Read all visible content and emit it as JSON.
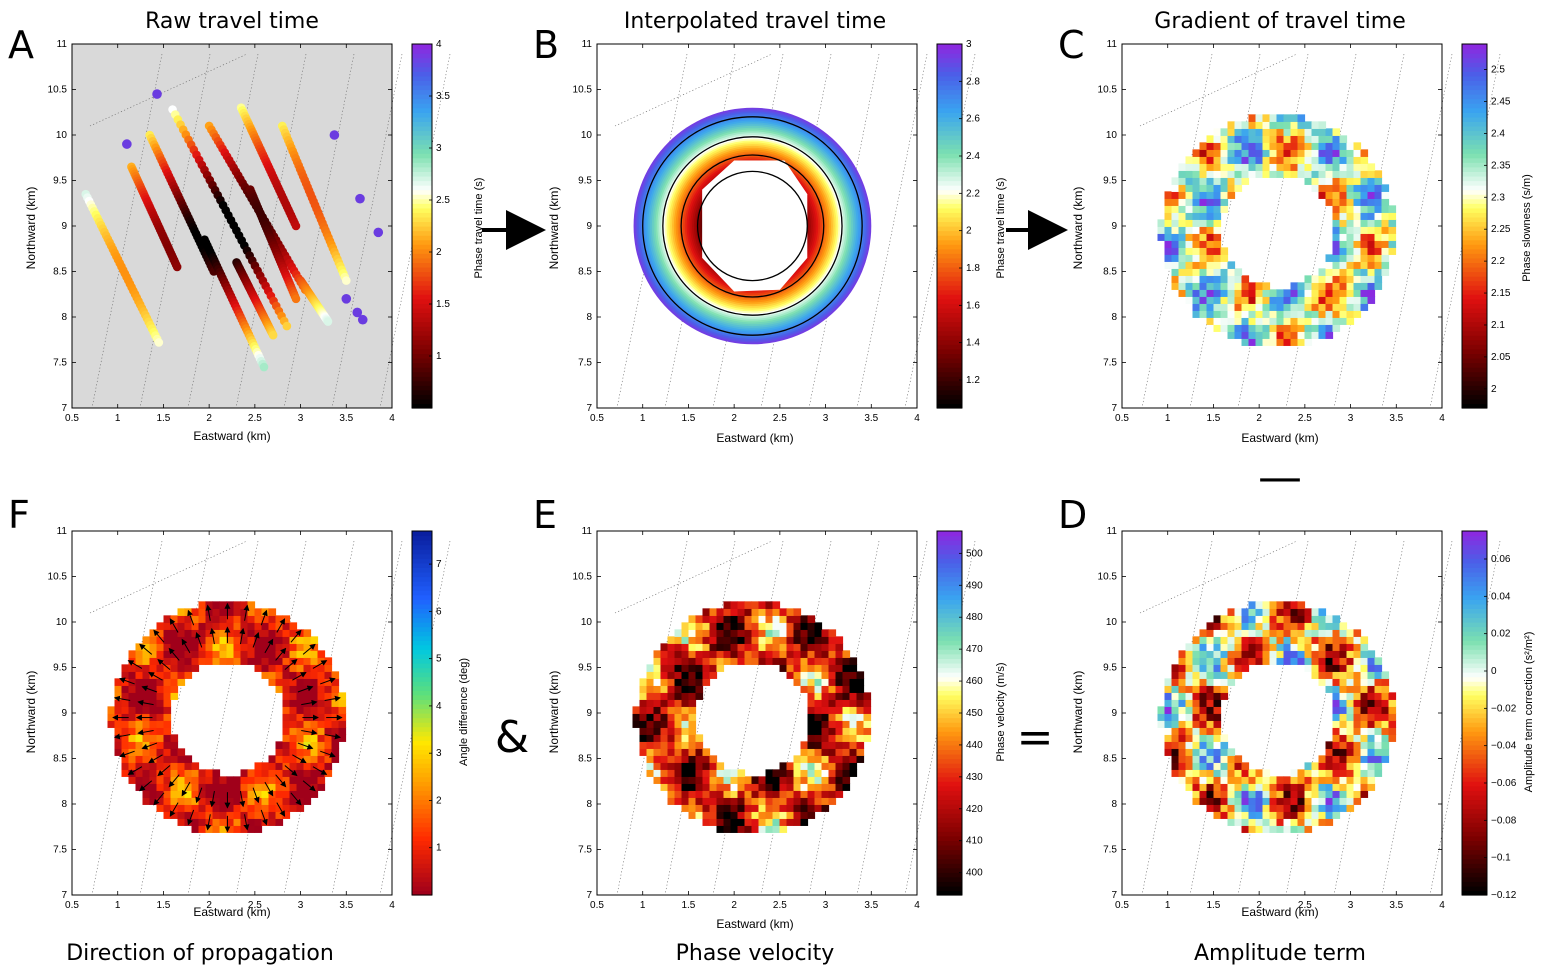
{
  "symbols": {
    "and": "&",
    "equals": "=",
    "minus": "—"
  },
  "chart_data": [
    {
      "id": "A",
      "type": "scatter",
      "title": "Raw travel time",
      "xlabel": "Eastward (km)",
      "ylabel": "Northward (km)",
      "xlim": [
        0.5,
        4
      ],
      "ylim": [
        7,
        11
      ],
      "xticks": [
        0.5,
        1,
        1.5,
        2,
        2.5,
        3,
        3.5,
        4
      ],
      "yticks": [
        7,
        7.5,
        8,
        8.5,
        9,
        9.5,
        10,
        10.5,
        11
      ],
      "background": "#d9d9d9",
      "colorbar": {
        "label": "Phase travel time (s)",
        "range": [
          0.5,
          4
        ],
        "ticks": [
          1,
          1.5,
          2,
          2.5,
          3,
          3.5,
          4
        ],
        "colormap": "travel"
      },
      "lines": [
        {
          "x0": 0.65,
          "y0": 9.35,
          "x1": 1.45,
          "y1": 7.72
        },
        {
          "x0": 1.15,
          "y0": 9.65,
          "x1": 1.65,
          "y1": 8.55
        },
        {
          "x0": 1.35,
          "y0": 10.0,
          "x1": 2.05,
          "y1": 8.5
        },
        {
          "x0": 1.6,
          "y0": 10.28,
          "x1": 2.85,
          "y1": 7.9
        },
        {
          "x0": 2.0,
          "y0": 10.1,
          "x1": 3.05,
          "y1": 8.3
        },
        {
          "x0": 1.95,
          "y0": 8.85,
          "x1": 2.6,
          "y1": 7.45
        },
        {
          "x0": 2.35,
          "y0": 10.3,
          "x1": 2.95,
          "y1": 9.0
        },
        {
          "x0": 2.3,
          "y0": 8.6,
          "x1": 2.7,
          "y1": 7.8
        },
        {
          "x0": 2.8,
          "y0": 10.1,
          "x1": 3.5,
          "y1": 8.4
        },
        {
          "x0": 2.45,
          "y0": 9.4,
          "x1": 2.95,
          "y1": 8.2
        },
        {
          "x0": 3.0,
          "y0": 8.4,
          "x1": 3.3,
          "y1": 7.95
        }
      ],
      "points": [
        [
          1.43,
          10.45
        ],
        [
          3.37,
          10.0
        ],
        [
          1.1,
          9.9
        ],
        [
          3.65,
          9.3
        ],
        [
          3.85,
          8.93
        ],
        [
          3.5,
          8.2
        ],
        [
          3.62,
          8.05
        ],
        [
          3.68,
          7.97
        ]
      ]
    },
    {
      "id": "B",
      "type": "heatmap",
      "title": "Interpolated travel time",
      "xlabel": "Eastward (km)",
      "ylabel": "Northward (km)",
      "xlim": [
        0.5,
        4
      ],
      "ylim": [
        7,
        11
      ],
      "xticks": [
        0.5,
        1,
        1.5,
        2,
        2.5,
        3,
        3.5,
        4
      ],
      "yticks": [
        7,
        7.5,
        8,
        8.5,
        9,
        9.5,
        10,
        10.5,
        11
      ],
      "center": [
        2.2,
        9.0
      ],
      "colorbar": {
        "label": "Phase travel time (s)",
        "range": [
          1.05,
          3.0
        ],
        "ticks": [
          1.2,
          1.4,
          1.6,
          1.8,
          2,
          2.2,
          2.4,
          2.6,
          2.8,
          3
        ],
        "colormap": "travel"
      },
      "contour_radii_km": [
        0.6,
        0.78,
        0.98,
        1.2
      ]
    },
    {
      "id": "C",
      "type": "heatmap",
      "title": "Gradient of travel time",
      "xlabel": "Eastward (km)",
      "ylabel": "Northward (km)",
      "xlim": [
        0.5,
        4
      ],
      "ylim": [
        7,
        11
      ],
      "xticks": [
        0.5,
        1,
        1.5,
        2,
        2.5,
        3,
        3.5,
        4
      ],
      "yticks": [
        7,
        7.5,
        8,
        8.5,
        9,
        9.5,
        10,
        10.5,
        11
      ],
      "colorbar": {
        "label": "Phase slowness (s/m)",
        "range": [
          1.97,
          2.54
        ],
        "ticks": [
          2,
          2.05,
          2.1,
          2.15,
          2.2,
          2.25,
          2.3,
          2.35,
          2.4,
          2.45,
          2.5
        ],
        "colormap": "travel"
      }
    },
    {
      "id": "D",
      "type": "heatmap",
      "title": "Amplitude term",
      "xlabel": "Eastward (km)",
      "ylabel": "Northward (km)",
      "xlim": [
        0.5,
        4
      ],
      "ylim": [
        7,
        11
      ],
      "xticks": [
        0.5,
        1,
        1.5,
        2,
        2.5,
        3,
        3.5,
        4
      ],
      "yticks": [
        7,
        7.5,
        8,
        8.5,
        9,
        9.5,
        10,
        10.5,
        11
      ],
      "colorbar": {
        "label": "Amplitude term correction (s²/m²)",
        "range": [
          -0.12,
          0.075
        ],
        "ticks": [
          "−0.12",
          "−0.1",
          "−0.08",
          "−0.06",
          "−0.04",
          "−0.02",
          "0",
          "0.02",
          "0.04",
          "0.06"
        ],
        "tick_values": [
          -0.12,
          -0.1,
          -0.08,
          -0.06,
          -0.04,
          -0.02,
          0,
          0.02,
          0.04,
          0.06
        ],
        "colormap": "travel"
      }
    },
    {
      "id": "E",
      "type": "heatmap",
      "title": "Phase velocity",
      "xlabel": "Eastward (km)",
      "ylabel": "Northward (km)",
      "xlim": [
        0.5,
        4
      ],
      "ylim": [
        7,
        11
      ],
      "xticks": [
        0.5,
        1,
        1.5,
        2,
        2.5,
        3,
        3.5,
        4
      ],
      "yticks": [
        7,
        7.5,
        8,
        8.5,
        9,
        9.5,
        10,
        10.5,
        11
      ],
      "colorbar": {
        "label": "Phase velocity (m/s)",
        "range": [
          393,
          507
        ],
        "ticks": [
          400,
          410,
          420,
          430,
          440,
          450,
          460,
          470,
          480,
          490,
          500
        ],
        "colormap": "travel"
      }
    },
    {
      "id": "F",
      "type": "heatmap",
      "title": "Direction of propagation",
      "xlabel": "Eastward (km)",
      "ylabel": "Northward (km)",
      "xlim": [
        0.5,
        4
      ],
      "ylim": [
        7,
        11
      ],
      "xticks": [
        0.5,
        1,
        1.5,
        2,
        2.5,
        3,
        3.5,
        4
      ],
      "yticks": [
        7,
        7.5,
        8,
        8.5,
        9,
        9.5,
        10,
        10.5,
        11
      ],
      "colorbar": {
        "label": "Angle difference (deg)",
        "range": [
          0,
          7.7
        ],
        "ticks": [
          1,
          2,
          3,
          4,
          5,
          6,
          7
        ],
        "colormap": "jet_r"
      }
    }
  ]
}
